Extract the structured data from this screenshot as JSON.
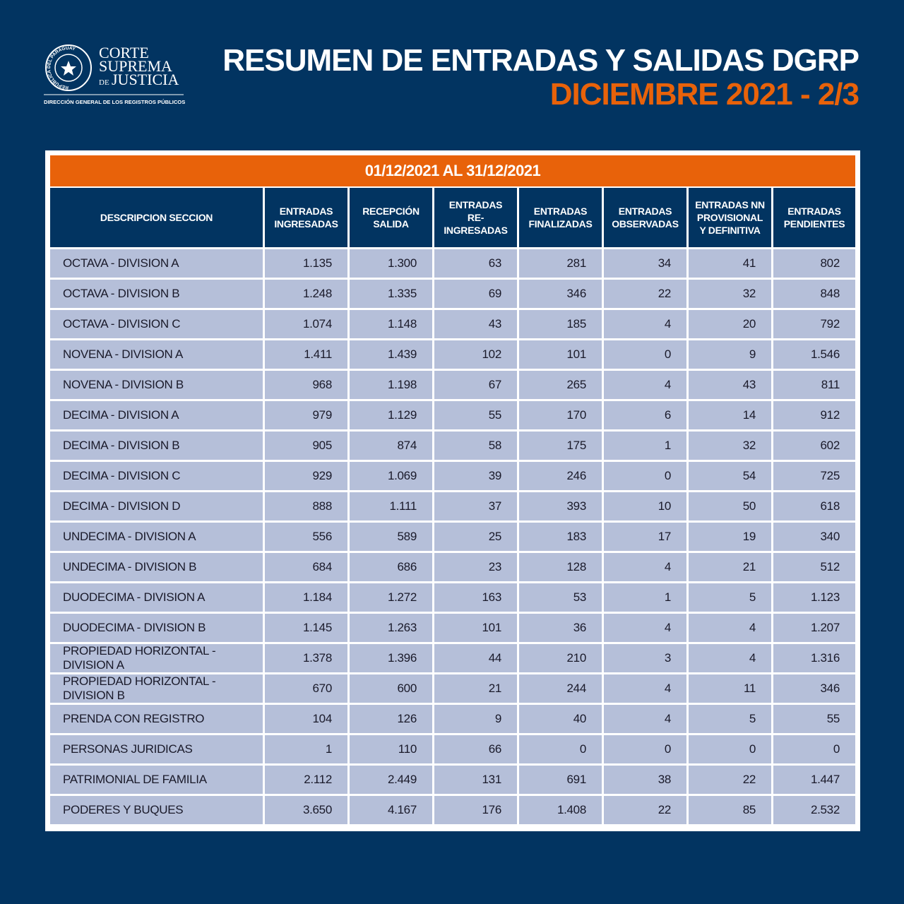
{
  "header": {
    "logo": {
      "seal_text": "REPÚBLICA DEL PARAGUAY",
      "line1": "CORTE",
      "line2": "SUPREMA",
      "line3a": "DE",
      "line3b": "JUSTICIA",
      "subtitle": "DIRECCIÓN GENERAL DE LOS REGISTROS PÚBLICOS"
    },
    "title": "RESUMEN DE ENTRADAS Y SALIDAS DGRP",
    "subtitle": "DICIEMBRE 2021 - 2/3"
  },
  "table": {
    "period": "01/12/2021 AL 31/12/2021",
    "columns": [
      "DESCRIPCION SECCION",
      "ENTRADAS INGRESADAS",
      "RECEPCIÓN SALIDA",
      "ENTRADAS RE-INGRESADAS",
      "ENTRADAS FINALIZADAS",
      "ENTRADAS OBSERVADAS",
      "ENTRADAS NN PROVISIONAL Y DEFINITIVA",
      "ENTRADAS PENDIENTES"
    ],
    "rows": [
      [
        "OCTAVA - DIVISION A",
        "1.135",
        "1.300",
        "63",
        "281",
        "34",
        "41",
        "802"
      ],
      [
        "OCTAVA - DIVISION B",
        "1.248",
        "1.335",
        "69",
        "346",
        "22",
        "32",
        "848"
      ],
      [
        "OCTAVA - DIVISION C",
        "1.074",
        "1.148",
        "43",
        "185",
        "4",
        "20",
        "792"
      ],
      [
        "NOVENA - DIVISION A",
        "1.411",
        "1.439",
        "102",
        "101",
        "0",
        "9",
        "1.546"
      ],
      [
        "NOVENA - DIVISION B",
        "968",
        "1.198",
        "67",
        "265",
        "4",
        "43",
        "811"
      ],
      [
        "DECIMA - DIVISION A",
        "979",
        "1.129",
        "55",
        "170",
        "6",
        "14",
        "912"
      ],
      [
        "DECIMA - DIVISION B",
        "905",
        "874",
        "58",
        "175",
        "1",
        "32",
        "602"
      ],
      [
        "DECIMA - DIVISION C",
        "929",
        "1.069",
        "39",
        "246",
        "0",
        "54",
        "725"
      ],
      [
        "DECIMA - DIVISION D",
        "888",
        "1.111",
        "37",
        "393",
        "10",
        "50",
        "618"
      ],
      [
        "UNDECIMA - DIVISION A",
        "556",
        "589",
        "25",
        "183",
        "17",
        "19",
        "340"
      ],
      [
        "UNDECIMA - DIVISION B",
        "684",
        "686",
        "23",
        "128",
        "4",
        "21",
        "512"
      ],
      [
        "DUODECIMA - DIVISION A",
        "1.184",
        "1.272",
        "163",
        "53",
        "1",
        "5",
        "1.123"
      ],
      [
        "DUODECIMA - DIVISION B",
        "1.145",
        "1.263",
        "101",
        "36",
        "4",
        "4",
        "1.207"
      ],
      [
        "PROPIEDAD HORIZONTAL - DIVISION A",
        "1.378",
        "1.396",
        "44",
        "210",
        "3",
        "4",
        "1.316"
      ],
      [
        "PROPIEDAD HORIZONTAL - DIVISION B",
        "670",
        "600",
        "21",
        "244",
        "4",
        "11",
        "346"
      ],
      [
        "PRENDA CON REGISTRO",
        "104",
        "126",
        "9",
        "40",
        "4",
        "5",
        "55"
      ],
      [
        "PERSONAS JURIDICAS",
        "1",
        "110",
        "66",
        "0",
        "0",
        "0",
        "0"
      ],
      [
        "PATRIMONIAL DE FAMILIA",
        "2.112",
        "2.449",
        "131",
        "691",
        "38",
        "22",
        "1.447"
      ],
      [
        "PODERES Y BUQUES",
        "3.650",
        "4.167",
        "176",
        "1.408",
        "22",
        "85",
        "2.532"
      ]
    ]
  }
}
